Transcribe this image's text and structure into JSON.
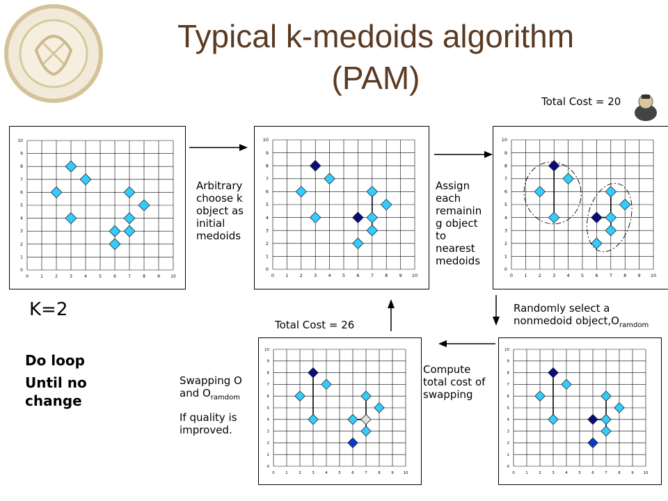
{
  "title": {
    "line1": "Typical k-medoids algorithm",
    "line2": "(PAM)"
  },
  "total_cost_top": "Total Cost = 20",
  "total_cost_bottom": "Total Cost = 26",
  "k_label": "K=2",
  "loop": {
    "line1": "Do loop",
    "line2": "Until no",
    "line3": "change"
  },
  "steps": {
    "arbitrary": "Arbitrary choose k object as initial medoids",
    "assign": "Assign each remainin g object to nearest medoids",
    "random_main": "Randomly select a nonmedoid object,O",
    "random_sub": "ramdom",
    "compute": "Compute total cost of swapping",
    "swap_main": "Swapping O and O",
    "swap_sub": "ramdom",
    "quality": "If quality is improved."
  },
  "colors": {
    "point": "#33ccff",
    "medoid": "#0a0a80",
    "new_medoid": "#0a3ac8",
    "swap_candidate": "#e0e0e0",
    "title": "#5a3a22"
  },
  "chart_data": [
    {
      "type": "scatter",
      "name": "plot1",
      "xlim": [
        0,
        10
      ],
      "ylim": [
        0,
        10
      ],
      "ticks": [
        "0",
        "1",
        "2",
        "3",
        "4",
        "5",
        "6",
        "7",
        "8",
        "9",
        "10"
      ],
      "points": [
        [
          2,
          6
        ],
        [
          3,
          8
        ],
        [
          3,
          4
        ],
        [
          4,
          7
        ],
        [
          6,
          2
        ],
        [
          6,
          3
        ],
        [
          7,
          6
        ],
        [
          7,
          4
        ],
        [
          7,
          3
        ],
        [
          8,
          5
        ]
      ],
      "medoids": [],
      "clusters": false,
      "connectors": []
    },
    {
      "type": "scatter",
      "name": "plot2",
      "xlim": [
        0,
        10
      ],
      "ylim": [
        0,
        10
      ],
      "ticks": [
        "0",
        "1",
        "2",
        "3",
        "4",
        "5",
        "6",
        "7",
        "8",
        "9",
        "10"
      ],
      "points": [
        [
          2,
          6
        ],
        [
          3,
          4
        ],
        [
          4,
          7
        ],
        [
          6,
          2
        ],
        [
          7,
          6
        ],
        [
          7,
          4
        ],
        [
          7,
          3
        ],
        [
          8,
          5
        ]
      ],
      "medoids": [
        [
          3,
          8
        ],
        [
          6,
          4
        ]
      ],
      "clusters": false,
      "connectors": [
        [
          [
            7,
            6
          ],
          [
            7,
            3
          ]
        ]
      ]
    },
    {
      "type": "scatter",
      "name": "plot3",
      "xlim": [
        0,
        10
      ],
      "ylim": [
        0,
        10
      ],
      "ticks": [
        "0",
        "1",
        "2",
        "3",
        "4",
        "5",
        "6",
        "7",
        "8",
        "9",
        "10"
      ],
      "points": [
        [
          2,
          6
        ],
        [
          3,
          4
        ],
        [
          4,
          7
        ],
        [
          6,
          2
        ],
        [
          7,
          6
        ],
        [
          7,
          4
        ],
        [
          7,
          3
        ],
        [
          8,
          5
        ]
      ],
      "medoids": [
        [
          3,
          8
        ],
        [
          6,
          4
        ]
      ],
      "clusters": true,
      "connectors": [
        [
          [
            3,
            8
          ],
          [
            3,
            4
          ]
        ],
        [
          [
            6,
            4
          ],
          [
            7,
            4
          ]
        ],
        [
          [
            7,
            6
          ],
          [
            7,
            3
          ]
        ]
      ]
    },
    {
      "type": "scatter",
      "name": "plot4",
      "xlim": [
        0,
        10
      ],
      "ylim": [
        0,
        10
      ],
      "ticks": [
        "0",
        "1",
        "2",
        "3",
        "4",
        "5",
        "6",
        "7",
        "8",
        "9",
        "10"
      ],
      "points": [
        [
          2,
          6
        ],
        [
          3,
          4
        ],
        [
          4,
          7
        ],
        [
          7,
          6
        ],
        [
          7,
          4
        ],
        [
          7,
          3
        ],
        [
          8,
          5
        ]
      ],
      "medoids": [
        [
          3,
          8
        ],
        [
          6,
          4
        ]
      ],
      "random": [
        [
          6,
          2
        ]
      ],
      "clusters": false,
      "connectors": [
        [
          [
            3,
            8
          ],
          [
            3,
            4
          ]
        ],
        [
          [
            6,
            4
          ],
          [
            7,
            4
          ]
        ],
        [
          [
            7,
            6
          ],
          [
            7,
            3
          ]
        ]
      ]
    },
    {
      "type": "scatter",
      "name": "plot5",
      "xlim": [
        0,
        10
      ],
      "ylim": [
        0,
        10
      ],
      "ticks": [
        "0",
        "1",
        "2",
        "3",
        "4",
        "5",
        "6",
        "7",
        "8",
        "9",
        "10"
      ],
      "points": [
        [
          2,
          6
        ],
        [
          3,
          4
        ],
        [
          4,
          7
        ],
        [
          6,
          4
        ],
        [
          7,
          6
        ],
        [
          7,
          3
        ],
        [
          8,
          5
        ]
      ],
      "medoids": [
        [
          3,
          8
        ]
      ],
      "random": [
        [
          6,
          2
        ]
      ],
      "swapped": [
        [
          7,
          4
        ]
      ],
      "clusters": false,
      "connectors": [
        [
          [
            3,
            8
          ],
          [
            3,
            4
          ]
        ],
        [
          [
            6,
            4
          ],
          [
            7,
            4
          ]
        ],
        [
          [
            7,
            6
          ],
          [
            7,
            3
          ]
        ]
      ]
    }
  ]
}
